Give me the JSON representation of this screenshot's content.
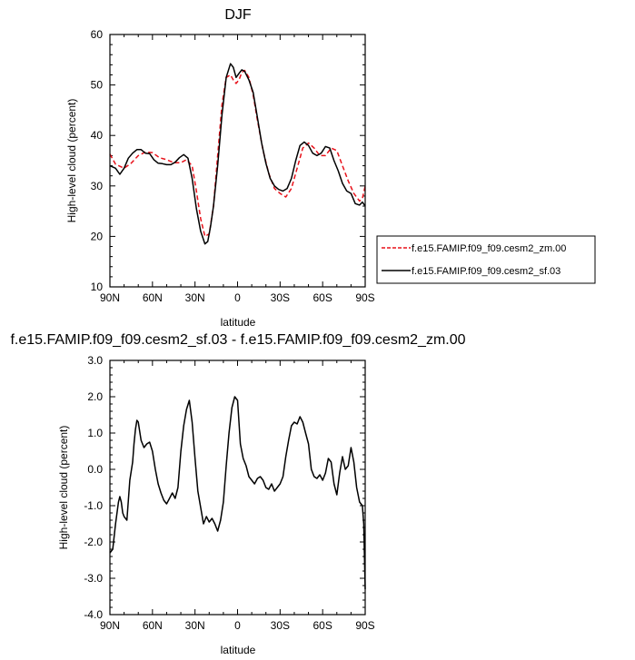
{
  "chart_data": [
    {
      "type": "line",
      "title": "DJF",
      "xlabel": "latitude",
      "ylabel": "High-level cloud (percent)",
      "xlim": [
        90,
        -90
      ],
      "ylim": [
        10,
        60
      ],
      "xticks": [
        90,
        60,
        30,
        0,
        -30,
        -60,
        -90
      ],
      "xtick_labels": [
        "90N",
        "60N",
        "30N",
        "0",
        "30S",
        "60S",
        "90S"
      ],
      "yticks": [
        10,
        20,
        30,
        40,
        50,
        60
      ],
      "ytick_labels": [
        "10",
        "20",
        "30",
        "40",
        "50",
        "60"
      ],
      "legend_position": "right",
      "series": [
        {
          "name": "f.e15.FAMIP.f09_f09.cesm2_zm.00",
          "color": "#e8111a",
          "dash": "dashed",
          "x": [
            90,
            86,
            80,
            75,
            70,
            65,
            60,
            55,
            50,
            45,
            40,
            36,
            32,
            29,
            26,
            23,
            20,
            17,
            14,
            11,
            8,
            5,
            3,
            1,
            -1,
            -3,
            -5,
            -8,
            -11,
            -14,
            -18,
            -22,
            -26,
            -30,
            -34,
            -38,
            -42,
            -46,
            -50,
            -54,
            -58,
            -62,
            -66,
            -70,
            -74,
            -78,
            -82,
            -86,
            -88,
            -90
          ],
          "y": [
            36.3,
            34.3,
            33.5,
            34.5,
            36.0,
            36.7,
            36.6,
            35.6,
            35.2,
            34.6,
            34.6,
            35.2,
            34.0,
            29.0,
            23.5,
            20.0,
            20.5,
            26.0,
            36.0,
            46.0,
            51.5,
            52.0,
            51.0,
            50.3,
            51.0,
            52.5,
            52.9,
            51.5,
            48.0,
            43.0,
            37.0,
            32.5,
            29.5,
            28.5,
            27.8,
            29.5,
            33.5,
            37.5,
            38.5,
            37.5,
            36.0,
            36.0,
            37.5,
            37.0,
            34.0,
            31.0,
            28.5,
            27.0,
            27.5,
            30.0
          ]
        },
        {
          "name": "f.e15.FAMIP.f09_f09.cesm2_sf.03",
          "color": "#000000",
          "dash": "solid",
          "x": [
            90,
            86,
            83,
            80,
            77,
            74,
            71,
            68,
            65,
            62,
            59,
            56,
            53,
            50,
            47,
            44,
            41,
            38,
            35,
            32,
            29,
            26,
            23,
            21,
            19,
            17,
            14,
            11,
            8,
            5,
            3,
            1,
            -1,
            -3,
            -5,
            -8,
            -11,
            -14,
            -17,
            -20,
            -23,
            -26,
            -29,
            -32,
            -35,
            -38,
            -41,
            -44,
            -47,
            -50,
            -53,
            -56,
            -59,
            -62,
            -65,
            -68,
            -71,
            -74,
            -77,
            -80,
            -83,
            -86,
            -88,
            -90
          ],
          "y": [
            34.0,
            33.5,
            32.3,
            33.5,
            35.5,
            36.5,
            37.2,
            37.2,
            36.5,
            36.4,
            35.2,
            34.5,
            34.4,
            34.2,
            34.2,
            34.7,
            35.6,
            36.2,
            35.5,
            31.5,
            25.5,
            21.0,
            18.5,
            19.0,
            22.0,
            26.0,
            34.0,
            44.0,
            51.5,
            54.2,
            53.5,
            51.5,
            52.3,
            53.0,
            52.7,
            51.0,
            48.5,
            43.5,
            38.5,
            34.5,
            31.5,
            30.0,
            29.3,
            29.0,
            29.5,
            31.5,
            35.0,
            38.0,
            38.7,
            38.0,
            36.5,
            36.0,
            36.5,
            37.8,
            37.5,
            35.0,
            33.0,
            30.5,
            29.0,
            28.5,
            26.5,
            26.2,
            26.8,
            26.0
          ]
        }
      ]
    },
    {
      "type": "line",
      "title": "f.e15.FAMIP.f09_f09.cesm2_sf.03 - f.e15.FAMIP.f09_f09.cesm2_zm.00",
      "xlabel": "latitude",
      "ylabel": "High-level cloud (percent)",
      "xlim": [
        90,
        -90
      ],
      "ylim": [
        -4.0,
        3.0
      ],
      "xticks": [
        90,
        60,
        30,
        0,
        -30,
        -60,
        -90
      ],
      "xtick_labels": [
        "90N",
        "60N",
        "30N",
        "0",
        "30S",
        "60S",
        "90S"
      ],
      "yticks": [
        -4.0,
        -3.0,
        -2.0,
        -1.0,
        0.0,
        1.0,
        2.0,
        3.0
      ],
      "ytick_labels": [
        "-4.0",
        "-3.0",
        "-2.0",
        "-1.0",
        "0.0",
        "1.0",
        "2.0",
        "3.0"
      ],
      "series": [
        {
          "color": "#000000",
          "dash": "solid",
          "x": [
            90,
            88,
            86,
            84,
            83,
            82,
            81,
            80,
            78,
            76,
            74,
            73,
            72,
            71,
            70,
            68,
            66,
            64,
            62,
            60,
            58,
            56,
            54,
            52,
            50,
            48,
            46,
            44,
            42,
            40,
            38,
            36,
            34,
            32,
            30,
            28,
            26,
            24,
            22,
            20,
            18,
            16,
            14,
            12,
            10,
            8,
            6,
            4,
            2,
            0,
            -2,
            -4,
            -6,
            -8,
            -10,
            -12,
            -14,
            -16,
            -18,
            -20,
            -22,
            -24,
            -26,
            -28,
            -30,
            -32,
            -34,
            -36,
            -38,
            -40,
            -42,
            -44,
            -46,
            -48,
            -50,
            -52,
            -54,
            -56,
            -58,
            -60,
            -62,
            -64,
            -66,
            -68,
            -70,
            -72,
            -74,
            -76,
            -78,
            -80,
            -82,
            -84,
            -86,
            -88,
            -89,
            -90
          ],
          "y": [
            -2.3,
            -2.2,
            -1.5,
            -0.9,
            -0.75,
            -0.9,
            -1.2,
            -1.3,
            -1.4,
            -0.3,
            0.2,
            0.7,
            1.1,
            1.35,
            1.3,
            0.8,
            0.6,
            0.7,
            0.75,
            0.5,
            0.0,
            -0.4,
            -0.65,
            -0.85,
            -0.95,
            -0.8,
            -0.65,
            -0.8,
            -0.5,
            0.5,
            1.2,
            1.65,
            1.9,
            1.3,
            0.3,
            -0.6,
            -1.05,
            -1.5,
            -1.3,
            -1.45,
            -1.35,
            -1.5,
            -1.7,
            -1.4,
            -0.9,
            0.1,
            1.0,
            1.7,
            2.0,
            1.9,
            0.7,
            0.3,
            0.1,
            -0.2,
            -0.3,
            -0.4,
            -0.25,
            -0.2,
            -0.3,
            -0.5,
            -0.55,
            -0.4,
            -0.6,
            -0.5,
            -0.4,
            -0.2,
            0.35,
            0.8,
            1.2,
            1.3,
            1.25,
            1.45,
            1.3,
            1.0,
            0.7,
            0.0,
            -0.2,
            -0.25,
            -0.15,
            -0.3,
            -0.1,
            0.3,
            0.2,
            -0.4,
            -0.7,
            -0.1,
            0.35,
            0.0,
            0.1,
            0.6,
            0.2,
            -0.5,
            -0.9,
            -1.0,
            -1.5,
            -3.3
          ]
        }
      ]
    }
  ]
}
